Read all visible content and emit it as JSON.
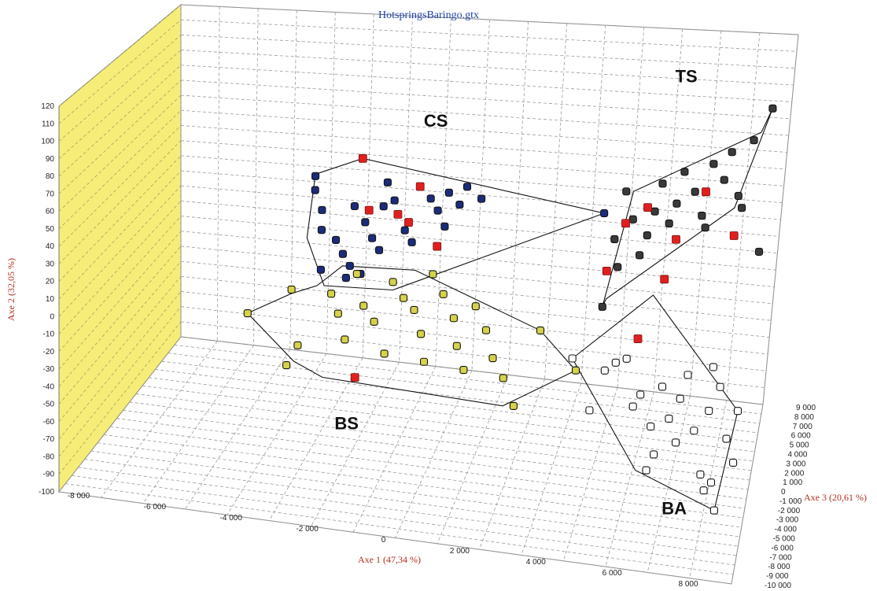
{
  "chart_data": {
    "type": "scatter",
    "title": "HotspringsBaringo.gtx",
    "xlabel": "Axe 1 (47,34 %)",
    "ylabel": "Axe 2 (32,05 %)",
    "zlabel": "Axe 3 (20,61 %)",
    "xticks": [
      "-8 000",
      "-6 000",
      "-4 000",
      "-2 000",
      "0",
      "2 000",
      "4 000",
      "6 000",
      "8 000"
    ],
    "yticks": [
      "120",
      "110",
      "100",
      "90",
      "80",
      "70",
      "60",
      "50",
      "40",
      "30",
      "20",
      "10",
      "0",
      "-10",
      "-20",
      "-30",
      "-40",
      "-50",
      "-60",
      "-70",
      "-80",
      "-90",
      "-100"
    ],
    "zticks": [
      "9 000",
      "8 000",
      "7 000",
      "6 000",
      "5 000",
      "4 000",
      "3 000",
      "2 000",
      "1 000",
      "0",
      "-1 000",
      "-2 000",
      "-3 000",
      "-4 000",
      "-5 000",
      "-6 000",
      "-7 000",
      "-8 000",
      "-9 000",
      "-10 000"
    ],
    "grid": true,
    "colors": {
      "wall": "#f6ec78",
      "grid": "#9a9a9a",
      "CS": "#1c2c7a",
      "BS": "#d6d24a",
      "TS": "#3a3a3a",
      "BA": "#ffffff",
      "highlight": "#e02020"
    },
    "groups": [
      {
        "name": "CS",
        "color": "#1c2c7a",
        "hull": [
          [
            -4.8,
            88
          ],
          [
            -3.5,
            96
          ],
          [
            3.2,
            69
          ],
          [
            -2.6,
            30
          ],
          [
            -4.5,
            32
          ],
          [
            -5,
            56
          ]
        ],
        "points": [
          [
            -4.8,
            87
          ],
          [
            -4.8,
            80
          ],
          [
            -4.6,
            70
          ],
          [
            -4.6,
            60
          ],
          [
            -4.2,
            55
          ],
          [
            -4,
            48
          ],
          [
            -3.8,
            42
          ],
          [
            -3.5,
            38
          ],
          [
            -3.7,
            72
          ],
          [
            -3.4,
            64
          ],
          [
            -3.2,
            56
          ],
          [
            -3,
            50
          ],
          [
            -2.8,
            84
          ],
          [
            -2.6,
            75
          ],
          [
            -2.5,
            68
          ],
          [
            -2.3,
            60
          ],
          [
            -2.1,
            54
          ],
          [
            -1.9,
            82
          ],
          [
            -1.6,
            76
          ],
          [
            -1.4,
            70
          ],
          [
            -1.2,
            62
          ],
          [
            -1.1,
            79
          ],
          [
            -0.8,
            73
          ],
          [
            -0.6,
            82
          ],
          [
            -0.2,
            76
          ],
          [
            -2.9,
            72
          ],
          [
            -3.9,
            36
          ],
          [
            -4.6,
            40
          ],
          [
            3.2,
            69
          ]
        ]
      },
      {
        "name": "BS",
        "color": "#d6d24a",
        "hull": [
          [
            -6.6,
            18
          ],
          [
            -5.4,
            28
          ],
          [
            -4.7,
            32
          ],
          [
            -4,
            42
          ],
          [
            -2,
            40
          ],
          [
            1.5,
            10
          ],
          [
            2.5,
            -10
          ],
          [
            0.5,
            -28
          ],
          [
            -4.5,
            -14
          ],
          [
            -5.3,
            -6
          ]
        ],
        "points": [
          [
            -6.6,
            18
          ],
          [
            -5.4,
            30
          ],
          [
            -5.2,
            2
          ],
          [
            -5.5,
            -8
          ],
          [
            -4.3,
            28
          ],
          [
            -4.1,
            18
          ],
          [
            -3.9,
            5
          ],
          [
            -3.6,
            38
          ],
          [
            -3.4,
            22
          ],
          [
            -3.1,
            14
          ],
          [
            -2.8,
            -2
          ],
          [
            -2.6,
            34
          ],
          [
            -2.3,
            26
          ],
          [
            -2,
            20
          ],
          [
            -1.8,
            8
          ],
          [
            -1.7,
            -6
          ],
          [
            -1.5,
            38
          ],
          [
            -1.2,
            28
          ],
          [
            -0.9,
            16
          ],
          [
            -0.8,
            2
          ],
          [
            -0.6,
            -10
          ],
          [
            -0.3,
            22
          ],
          [
            0,
            10
          ],
          [
            0.2,
            -4
          ],
          [
            0.5,
            -14
          ],
          [
            0.8,
            -28
          ],
          [
            1.5,
            10
          ],
          [
            2.5,
            -10
          ]
        ]
      },
      {
        "name": "TS",
        "color": "#3a3a3a",
        "hull": [
          [
            3.2,
            22
          ],
          [
            4,
            80
          ],
          [
            7.5,
            110
          ],
          [
            7.8,
            122
          ],
          [
            6.8,
            72
          ],
          [
            3.3,
            26
          ]
        ],
        "points": [
          [
            3.2,
            22
          ],
          [
            3.5,
            56
          ],
          [
            3.6,
            42
          ],
          [
            3.8,
            80
          ],
          [
            4,
            66
          ],
          [
            4.2,
            48
          ],
          [
            4.4,
            58
          ],
          [
            4.6,
            70
          ],
          [
            4.8,
            84
          ],
          [
            5,
            64
          ],
          [
            5.2,
            74
          ],
          [
            5.4,
            90
          ],
          [
            5.7,
            80
          ],
          [
            6,
            62
          ],
          [
            6.2,
            94
          ],
          [
            6.5,
            86
          ],
          [
            6.7,
            100
          ],
          [
            7.0,
            72
          ],
          [
            7.3,
            106
          ],
          [
            7.8,
            122
          ],
          [
            7.5,
            50
          ],
          [
            6.9,
            78
          ],
          [
            5.9,
            68
          ]
        ]
      },
      {
        "name": "BA",
        "color": "#ffffff",
        "hull": [
          [
            2.4,
            -4
          ],
          [
            4.6,
            28
          ],
          [
            7,
            -30
          ],
          [
            6.4,
            -80
          ],
          [
            4.2,
            -60
          ]
        ],
        "points": [
          [
            2.4,
            -4
          ],
          [
            2.9,
            -30
          ],
          [
            3.3,
            -10
          ],
          [
            3.6,
            -6
          ],
          [
            3.9,
            -4
          ],
          [
            4.1,
            -28
          ],
          [
            4.3,
            -22
          ],
          [
            4.6,
            -38
          ],
          [
            4.7,
            -52
          ],
          [
            4.5,
            -60
          ],
          [
            4.9,
            -18
          ],
          [
            5.1,
            -34
          ],
          [
            5.3,
            -46
          ],
          [
            5.4,
            -24
          ],
          [
            5.6,
            -12
          ],
          [
            5.8,
            -40
          ],
          [
            6,
            -62
          ],
          [
            6.2,
            -30
          ],
          [
            6.3,
            -8
          ],
          [
            6.5,
            -18
          ],
          [
            6.7,
            -44
          ],
          [
            6.9,
            -56
          ],
          [
            7,
            -30
          ],
          [
            6.4,
            -80
          ],
          [
            6.1,
            -70
          ],
          [
            6.3,
            -66
          ]
        ]
      }
    ],
    "highlight_points": [
      [
        -3.5,
        96
      ],
      [
        -3.3,
        70
      ],
      [
        -2.5,
        68
      ],
      [
        -1.9,
        82
      ],
      [
        -2.2,
        64
      ],
      [
        -1.4,
        52
      ],
      [
        -3.6,
        -14
      ],
      [
        3.8,
        64
      ],
      [
        3.3,
        40
      ],
      [
        4.4,
        72
      ],
      [
        5.2,
        56
      ],
      [
        6,
        80
      ],
      [
        6.8,
        58
      ],
      [
        4.2,
        6
      ],
      [
        4.9,
        36
      ]
    ],
    "group_labels": [
      {
        "text": "CS",
        "x": -1.5,
        "y": 112
      },
      {
        "text": "BS",
        "x": -3.8,
        "y": -40
      },
      {
        "text": "TS",
        "x": 5.4,
        "y": 135
      },
      {
        "text": "BA",
        "x": 5.3,
        "y": -82
      }
    ]
  }
}
